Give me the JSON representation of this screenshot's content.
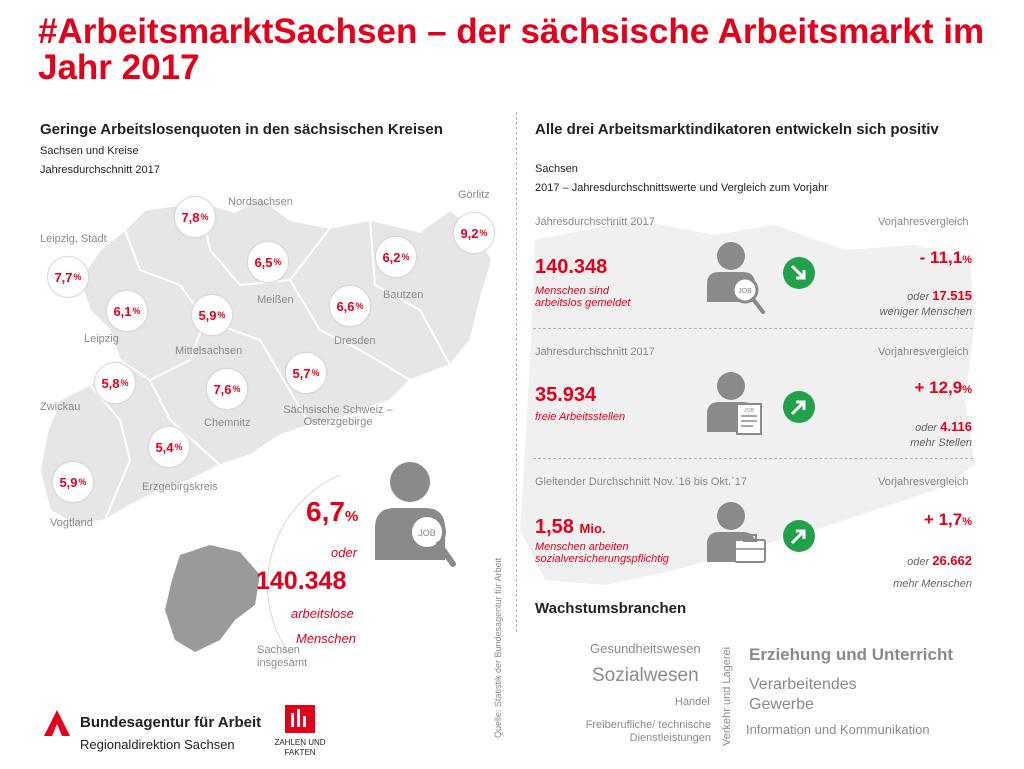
{
  "title": "#ArbeitsmarktSachsen – der sächsische Arbeitsmarkt im Jahr 2017",
  "left": {
    "heading": "Geringe Arbeitslosenquoten in den sächsischen Kreisen",
    "subtitle1": "Sachsen und Kreise",
    "subtitle2": "Jahresdurchschnitt 2017",
    "percent_sign": "%",
    "regions": [
      {
        "name": "Leipzig, Stadt",
        "value": "7,7"
      },
      {
        "name": "Nordsachsen",
        "value": "7,8"
      },
      {
        "name": "Leipzig",
        "value": "6,1"
      },
      {
        "name": "Meißen",
        "value": "6,5"
      },
      {
        "name": "Mittelsachsen",
        "value": "5,9"
      },
      {
        "name": "Görlitz",
        "value": "9,2"
      },
      {
        "name": "Bautzen",
        "value": "6,2"
      },
      {
        "name": "Dresden",
        "value": "6,6"
      },
      {
        "name": "Zwickau",
        "value": "5,8"
      },
      {
        "name": "Chemnitz",
        "value": "7,6"
      },
      {
        "name": "Sächsische Schweiz – Osterzgebirge",
        "value": "5,7"
      },
      {
        "name": "Erzgebirgskreis",
        "value": "5,4"
      },
      {
        "name": "Vogtland",
        "value": "5,9"
      }
    ],
    "total": {
      "rate": "6,7",
      "oder": "oder",
      "count": "140.348",
      "count_desc1": "arbeitslose",
      "count_desc2": "Menschen",
      "region_label1": "Sachsen",
      "region_label2": "insgesamt"
    }
  },
  "right": {
    "heading": "Alle drei Arbeitsmarktindikatoren entwickeln sich positiv",
    "subtitle1": "Sachsen",
    "subtitle2": "2017 – Jahresdurchschnittswerte und Vergleich zum Vorjahr",
    "indicators": [
      {
        "period": "Jahresdurchschnitt 2017",
        "compare_label": "Vorjahresvergleich",
        "value": "140.348",
        "unit": "",
        "desc1": "Menschen sind",
        "desc2": "arbeitslos gemeldet",
        "change": "- 11,1",
        "change_unit": "%",
        "abs_prefix": "oder",
        "abs_value": "17.515",
        "abs_suffix": "weniger Menschen",
        "trend": "down"
      },
      {
        "period": "Jahresdurchschnitt 2017",
        "compare_label": "Vorjahresvergleich",
        "value": "35.934",
        "unit": "",
        "desc1": "freie Arbeitsstellen",
        "desc2": "",
        "change": "+ 12,9",
        "change_unit": "%",
        "abs_prefix": "oder",
        "abs_value": "4.116",
        "abs_suffix": "mehr Stellen",
        "trend": "up"
      },
      {
        "period": "Gleitender Durchschnitt Nov.`16 bis Okt.`17",
        "compare_label": "Vorjahresvergleich",
        "value": "1,58",
        "unit": "Mio.",
        "desc1": "Menschen arbeiten",
        "desc2": "sozialversicherungspflichtig",
        "change": "+ 1,7",
        "change_unit": "%",
        "abs_prefix": "oder",
        "abs_value": "26.662",
        "abs_suffix": "mehr Menschen",
        "trend": "up"
      }
    ],
    "job_icon_text": "JOB",
    "growth_heading": "Wachstumsbranchen",
    "branches": {
      "gesundheit": "Gesundheitswesen",
      "sozial": "Sozialwesen",
      "handel": "Handel",
      "freiberuf1": "Freiberufliche/ technische",
      "freiberuf2": "Dienstleistungen",
      "verkehr": "Verkehr und Lagerei",
      "erziehung": "Erziehung und Unterricht",
      "verarbeitend1": "Verarbeitendes",
      "verarbeitend2": "Gewerbe",
      "information": "Information und Kommunikation"
    }
  },
  "source": "Quelle: Statistik der Bundesagentur für Arbeit",
  "footer": {
    "org1": "Bundesagentur für Arbeit",
    "org2": "Regionaldirektion Sachsen",
    "logo2_1": "ZAHLEN UND",
    "logo2_2": "FAKTEN"
  },
  "colors": {
    "accent": "#e2001a",
    "map": "#e6e6e6",
    "green": "#21a24a",
    "icon": "#8a8a8a"
  }
}
